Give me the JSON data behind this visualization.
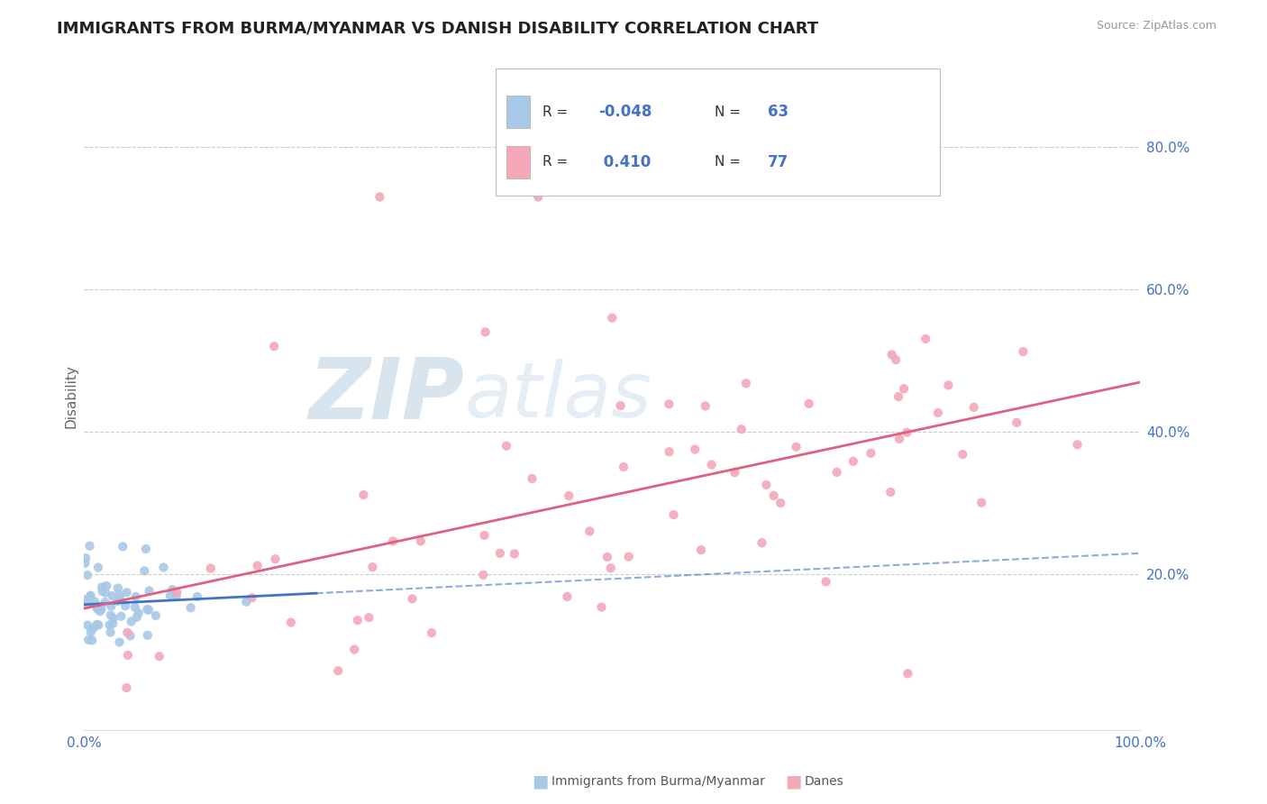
{
  "title": "IMMIGRANTS FROM BURMA/MYANMAR VS DANISH DISABILITY CORRELATION CHART",
  "source": "Source: ZipAtlas.com",
  "ylabel": "Disability",
  "blue_R": -0.048,
  "blue_N": 63,
  "pink_R": 0.41,
  "pink_N": 77,
  "blue_color": "#a8c8e8",
  "pink_color": "#f4a8b8",
  "blue_line_color": "#4472c4",
  "pink_line_color": "#e06080",
  "blue_label": "Immigrants from Burma/Myanmar",
  "pink_label": "Danes",
  "background_color": "#ffffff",
  "grid_color": "#cccccc",
  "title_color": "#222222",
  "title_fontsize": 13,
  "axis_label_color": "#4472c4",
  "watermark_color": "#d0dce8"
}
